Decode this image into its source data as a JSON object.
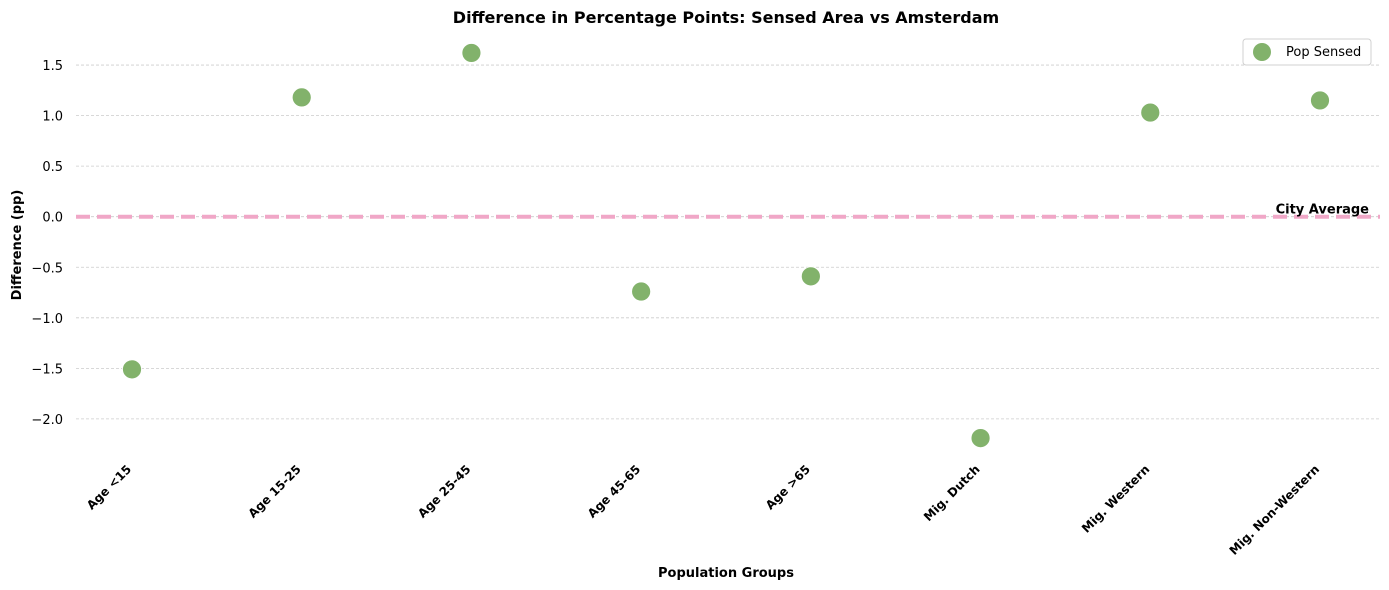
{
  "chart_data": {
    "type": "scatter",
    "title": "Difference in Percentage Points: Sensed Area vs Amsterdam",
    "xlabel": "Population Groups",
    "ylabel": "Difference (pp)",
    "categories": [
      "Age <15",
      "Age 15-25",
      "Age 25-45",
      "Age 45-65",
      "Age >65",
      "Mig. Dutch",
      "Mig. Western",
      "Mig. Non-Western"
    ],
    "series": [
      {
        "name": "Pop Sensed",
        "values": [
          -1.51,
          1.18,
          1.62,
          -0.74,
          -0.59,
          -2.19,
          1.03,
          1.15
        ]
      }
    ],
    "yticks": [
      "1.5",
      "1.0",
      "0.5",
      "0.0",
      "−0.5",
      "−1.0",
      "−1.5",
      "−2.0"
    ],
    "ytick_values": [
      1.5,
      1.0,
      0.5,
      0.0,
      -0.5,
      -1.0,
      -1.5,
      -2.0
    ],
    "ylim": [
      -2.35,
      1.75
    ],
    "grid": "y-dashed",
    "legend": "top-right",
    "reference_line": {
      "value": 0,
      "label": "City Average",
      "color": "#f0a7c7"
    },
    "marker_color": "#82b26b"
  }
}
